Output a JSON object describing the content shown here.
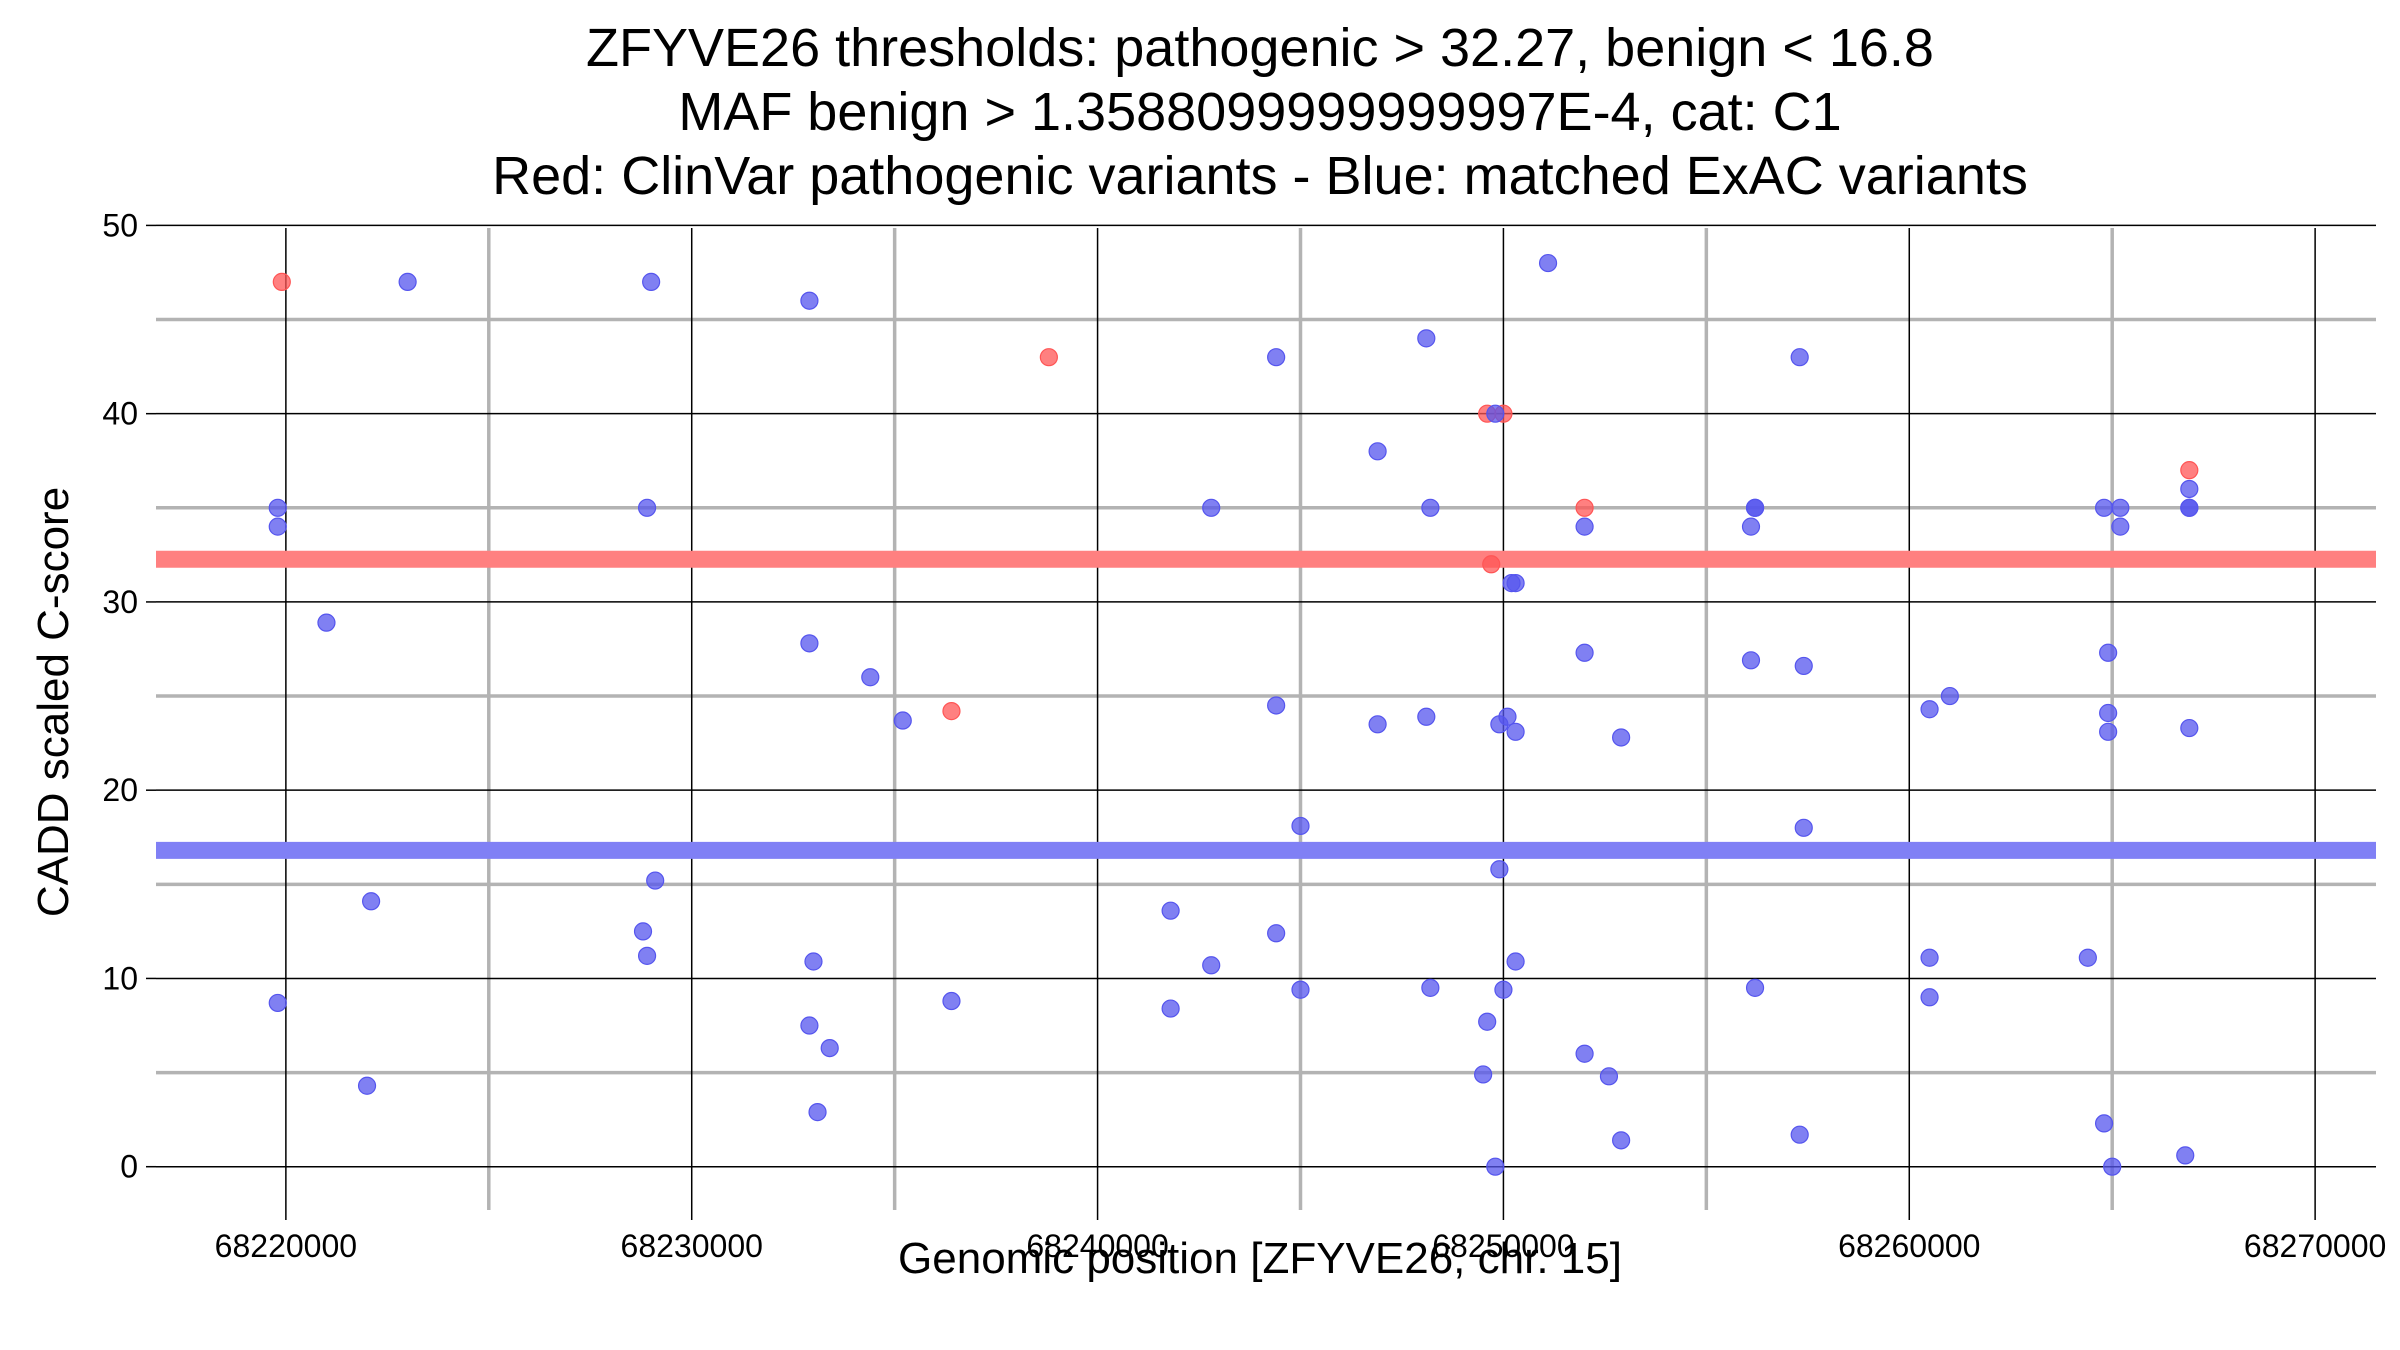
{
  "chart_data": {
    "type": "scatter",
    "title_lines": [
      "ZFYVE26 thresholds: pathogenic > 32.27, benign < 16.8",
      "MAF benign > 1.3588099999999997E-4, cat: C1",
      "Red: ClinVar pathogenic variants - Blue: matched ExAC variants"
    ],
    "xlabel": "Genomic position [ZFYVE26, chr. 15]",
    "ylabel": "CADD scaled C-score",
    "xlim": [
      68216800,
      68271500
    ],
    "ylim": [
      -2.3,
      50.5
    ],
    "x_ticks": [
      68220000,
      68230000,
      68240000,
      68250000,
      68260000,
      68270000
    ],
    "x_minor_grid": [
      68225000,
      68235000,
      68245000,
      68255000,
      68265000
    ],
    "y_ticks": [
      0,
      10,
      20,
      30,
      40,
      50
    ],
    "y_minor_grid": [
      5,
      15,
      25,
      35,
      45
    ],
    "grid": true,
    "thresholds": [
      {
        "name": "pathogenic",
        "value": 32.27,
        "color": "#ff8080"
      },
      {
        "name": "benign",
        "value": 16.8,
        "color": "#8080f5"
      }
    ],
    "series": [
      {
        "color": "#ff5555",
        "points": [
          [
            68219900,
            47
          ],
          [
            68238800,
            43
          ],
          [
            68249600,
            40
          ],
          [
            68250000,
            40
          ],
          [
            68249700,
            32
          ],
          [
            68252000,
            35
          ],
          [
            68236400,
            24.2
          ],
          [
            68266900,
            37
          ]
        ]
      },
      {
        "color": "#5555ee",
        "points": [
          [
            68223000,
            47
          ],
          [
            68229000,
            47
          ],
          [
            68232900,
            46
          ],
          [
            68251100,
            48
          ],
          [
            68248100,
            44
          ],
          [
            68244400,
            43
          ],
          [
            68257300,
            43
          ],
          [
            68249800,
            40
          ],
          [
            68246900,
            38
          ],
          [
            68219800,
            35
          ],
          [
            68219800,
            34
          ],
          [
            68228900,
            35
          ],
          [
            68242800,
            35
          ],
          [
            68248200,
            35
          ],
          [
            68252000,
            34
          ],
          [
            68256200,
            35
          ],
          [
            68256200,
            35
          ],
          [
            68256100,
            34
          ],
          [
            68264800,
            35
          ],
          [
            68265200,
            35
          ],
          [
            68265200,
            34
          ],
          [
            68266900,
            36
          ],
          [
            68266900,
            35
          ],
          [
            68266900,
            35
          ],
          [
            68250200,
            31
          ],
          [
            68250300,
            31
          ],
          [
            68221000,
            28.9
          ],
          [
            68232900,
            27.8
          ],
          [
            68234400,
            26
          ],
          [
            68235200,
            23.7
          ],
          [
            68244400,
            24.5
          ],
          [
            68246900,
            23.5
          ],
          [
            68248100,
            23.9
          ],
          [
            68249900,
            23.5
          ],
          [
            68250100,
            23.9
          ],
          [
            68250300,
            23.1
          ],
          [
            68252000,
            27.3
          ],
          [
            68252900,
            22.8
          ],
          [
            68256100,
            26.9
          ],
          [
            68257400,
            26.6
          ],
          [
            68260500,
            24.3
          ],
          [
            68261000,
            25
          ],
          [
            68264900,
            27.3
          ],
          [
            68264900,
            24.1
          ],
          [
            68264900,
            23.1
          ],
          [
            68266900,
            23.3
          ],
          [
            68245000,
            18.1
          ],
          [
            68257400,
            18
          ],
          [
            68222100,
            14.1
          ],
          [
            68229100,
            15.2
          ],
          [
            68228800,
            12.5
          ],
          [
            68228900,
            11.2
          ],
          [
            68233000,
            10.9
          ],
          [
            68241800,
            13.6
          ],
          [
            68242800,
            10.7
          ],
          [
            68244400,
            12.4
          ],
          [
            68249900,
            15.8
          ],
          [
            68250300,
            10.9
          ],
          [
            68260500,
            11.1
          ],
          [
            68264400,
            11.1
          ],
          [
            68219800,
            8.7
          ],
          [
            68232900,
            7.5
          ],
          [
            68233400,
            6.3
          ],
          [
            68236400,
            8.8
          ],
          [
            68241800,
            8.4
          ],
          [
            68245000,
            9.4
          ],
          [
            68248200,
            9.5
          ],
          [
            68249600,
            7.7
          ],
          [
            68250000,
            9.4
          ],
          [
            68256200,
            9.5
          ],
          [
            68260500,
            9
          ],
          [
            68222000,
            4.3
          ],
          [
            68233100,
            2.9
          ],
          [
            68249500,
            4.9
          ],
          [
            68249800,
            0
          ],
          [
            68252000,
            6
          ],
          [
            68252600,
            4.8
          ],
          [
            68252900,
            1.4
          ],
          [
            68257300,
            1.7
          ],
          [
            68264800,
            2.3
          ],
          [
            68265000,
            0
          ],
          [
            68266800,
            0.6
          ]
        ]
      }
    ]
  }
}
